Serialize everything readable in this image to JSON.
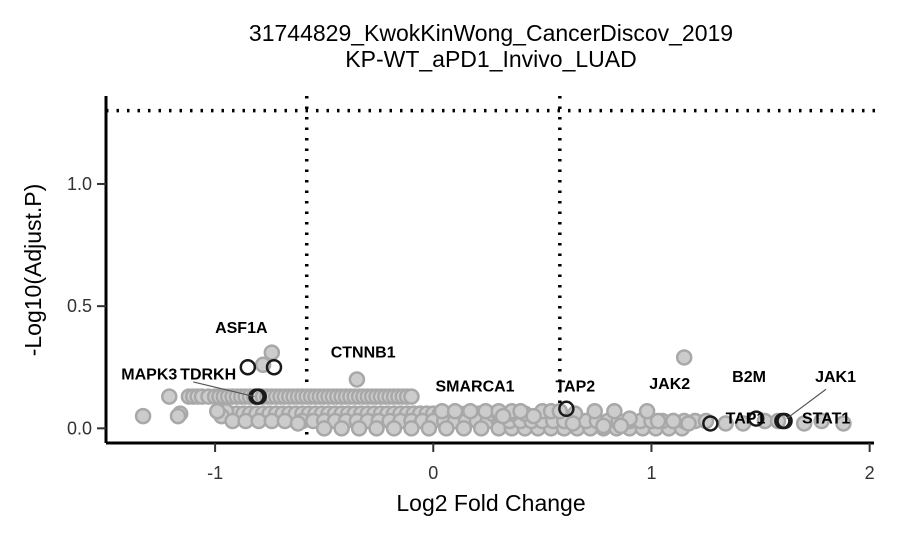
{
  "chart_data": {
    "type": "scatter",
    "title": "31744829_KwokKinWong_CancerDiscov_2019",
    "subtitle": "KP-WT_aPD1_Invivo_LUAD",
    "xlabel": "Log2 Fold Change",
    "ylabel": "-Log10(Adjust.P)",
    "xlim": [
      -1.5,
      2.02
    ],
    "ylim": [
      -0.06,
      1.36
    ],
    "xticks": [
      -1,
      0,
      1,
      2
    ],
    "xtick_labels": [
      "-1",
      "0",
      "1",
      "2"
    ],
    "yticks": [
      0.0,
      0.5,
      1.0
    ],
    "ytick_labels": [
      "0.0",
      "0.5",
      "1.0"
    ],
    "thresholds": {
      "x": [
        -0.58,
        0.58
      ],
      "y": 1.3
    },
    "grid": false,
    "legend": "none",
    "colors": {
      "point_fill": "#cccccc",
      "point_stroke": "#a8a8a8",
      "highlight_stroke": "#1a1a1a",
      "axis": "#000000",
      "label": "#000000"
    },
    "background_points": [
      [
        -1.33,
        0.05
      ],
      [
        -1.21,
        0.13
      ],
      [
        -1.16,
        0.06
      ],
      [
        -1.17,
        0.05
      ],
      [
        -1.12,
        0.13
      ],
      [
        -1.1,
        0.13
      ],
      [
        -1.08,
        0.13
      ],
      [
        -1.06,
        0.13
      ],
      [
        -1.03,
        0.13
      ],
      [
        -1.0,
        0.13
      ],
      [
        -0.98,
        0.13
      ],
      [
        -0.96,
        0.13
      ],
      [
        -0.94,
        0.13
      ],
      [
        -0.92,
        0.13
      ],
      [
        -0.9,
        0.13
      ],
      [
        -0.88,
        0.13
      ],
      [
        -0.86,
        0.13
      ],
      [
        -0.84,
        0.13
      ],
      [
        -0.82,
        0.13
      ],
      [
        -0.8,
        0.13
      ],
      [
        -0.78,
        0.13
      ],
      [
        -0.76,
        0.13
      ],
      [
        -0.74,
        0.13
      ],
      [
        -0.72,
        0.13
      ],
      [
        -0.7,
        0.13
      ],
      [
        -0.68,
        0.13
      ],
      [
        -0.66,
        0.13
      ],
      [
        -0.64,
        0.13
      ],
      [
        -0.62,
        0.13
      ],
      [
        -0.6,
        0.13
      ],
      [
        -0.58,
        0.13
      ],
      [
        -0.56,
        0.13
      ],
      [
        -0.54,
        0.13
      ],
      [
        -0.52,
        0.13
      ],
      [
        -0.5,
        0.13
      ],
      [
        -0.48,
        0.13
      ],
      [
        -0.46,
        0.13
      ],
      [
        -0.44,
        0.13
      ],
      [
        -0.42,
        0.13
      ],
      [
        -0.4,
        0.13
      ],
      [
        -0.38,
        0.13
      ],
      [
        -0.36,
        0.13
      ],
      [
        -0.34,
        0.13
      ],
      [
        -0.32,
        0.13
      ],
      [
        -0.3,
        0.13
      ],
      [
        -0.28,
        0.13
      ],
      [
        -0.26,
        0.13
      ],
      [
        -0.24,
        0.13
      ],
      [
        -0.22,
        0.13
      ],
      [
        -0.2,
        0.13
      ],
      [
        -0.18,
        0.13
      ],
      [
        -0.16,
        0.13
      ],
      [
        -0.14,
        0.13
      ],
      [
        -0.12,
        0.13
      ],
      [
        -0.1,
        0.13
      ],
      [
        -0.93,
        0.06
      ],
      [
        -0.9,
        0.06
      ],
      [
        -0.87,
        0.06
      ],
      [
        -0.84,
        0.06
      ],
      [
        -0.81,
        0.06
      ],
      [
        -0.78,
        0.06
      ],
      [
        -0.75,
        0.06
      ],
      [
        -0.72,
        0.06
      ],
      [
        -0.69,
        0.06
      ],
      [
        -0.66,
        0.06
      ],
      [
        -0.63,
        0.06
      ],
      [
        -0.6,
        0.06
      ],
      [
        -0.57,
        0.06
      ],
      [
        -0.54,
        0.06
      ],
      [
        -0.51,
        0.06
      ],
      [
        -0.48,
        0.06
      ],
      [
        -0.45,
        0.06
      ],
      [
        -0.42,
        0.06
      ],
      [
        -0.39,
        0.06
      ],
      [
        -0.36,
        0.06
      ],
      [
        -0.33,
        0.06
      ],
      [
        -0.3,
        0.06
      ],
      [
        -0.27,
        0.06
      ],
      [
        -0.24,
        0.06
      ],
      [
        -0.21,
        0.06
      ],
      [
        -0.18,
        0.06
      ],
      [
        -0.15,
        0.06
      ],
      [
        -0.12,
        0.06
      ],
      [
        -0.09,
        0.06
      ],
      [
        -0.06,
        0.06
      ],
      [
        -0.03,
        0.06
      ],
      [
        0.0,
        0.06
      ],
      [
        0.03,
        0.06
      ],
      [
        0.06,
        0.06
      ],
      [
        0.09,
        0.06
      ],
      [
        0.12,
        0.06
      ],
      [
        0.15,
        0.06
      ],
      [
        0.18,
        0.06
      ],
      [
        0.21,
        0.06
      ],
      [
        0.24,
        0.06
      ],
      [
        -0.6,
        0.03
      ],
      [
        -0.55,
        0.03
      ],
      [
        -0.5,
        0.03
      ],
      [
        -0.45,
        0.03
      ],
      [
        -0.4,
        0.03
      ],
      [
        -0.35,
        0.03
      ],
      [
        -0.3,
        0.03
      ],
      [
        -0.25,
        0.03
      ],
      [
        -0.2,
        0.03
      ],
      [
        -0.15,
        0.03
      ],
      [
        -0.1,
        0.03
      ],
      [
        -0.05,
        0.03
      ],
      [
        0.0,
        0.03
      ],
      [
        0.05,
        0.03
      ],
      [
        0.1,
        0.03
      ],
      [
        0.15,
        0.03
      ],
      [
        0.2,
        0.03
      ],
      [
        0.25,
        0.03
      ],
      [
        0.3,
        0.03
      ],
      [
        -0.5,
        0.0
      ],
      [
        -0.42,
        0.0
      ],
      [
        -0.34,
        0.0
      ],
      [
        -0.26,
        0.0
      ],
      [
        -0.18,
        0.0
      ],
      [
        -0.1,
        0.0
      ],
      [
        -0.02,
        0.0
      ],
      [
        0.06,
        0.0
      ],
      [
        0.14,
        0.0
      ],
      [
        0.22,
        0.0
      ],
      [
        0.3,
        0.0
      ],
      [
        0.36,
        0.0
      ],
      [
        0.42,
        0.0
      ],
      [
        0.48,
        0.0
      ],
      [
        0.54,
        0.0
      ],
      [
        0.6,
        0.0
      ],
      [
        0.66,
        0.0
      ],
      [
        0.72,
        0.0
      ],
      [
        0.78,
        0.0
      ],
      [
        0.84,
        0.0
      ],
      [
        0.9,
        0.0
      ],
      [
        0.96,
        0.0
      ],
      [
        1.02,
        0.0
      ],
      [
        1.08,
        0.0
      ],
      [
        1.14,
        0.0
      ],
      [
        0.35,
        0.03
      ],
      [
        0.4,
        0.03
      ],
      [
        0.45,
        0.03
      ],
      [
        0.5,
        0.03
      ],
      [
        0.55,
        0.03
      ],
      [
        0.6,
        0.03
      ],
      [
        0.65,
        0.03
      ],
      [
        0.7,
        0.03
      ],
      [
        0.75,
        0.03
      ],
      [
        0.8,
        0.03
      ],
      [
        0.85,
        0.03
      ],
      [
        0.9,
        0.03
      ],
      [
        0.95,
        0.03
      ],
      [
        1.0,
        0.03
      ],
      [
        1.05,
        0.03
      ],
      [
        1.1,
        0.03
      ],
      [
        1.15,
        0.03
      ],
      [
        1.2,
        0.03
      ],
      [
        1.25,
        0.03
      ],
      [
        0.27,
        0.06
      ],
      [
        0.3,
        0.06
      ],
      [
        0.36,
        0.06
      ],
      [
        0.42,
        0.06
      ],
      [
        0.04,
        0.07
      ],
      [
        0.1,
        0.07
      ],
      [
        0.17,
        0.07
      ],
      [
        0.24,
        0.07
      ],
      [
        0.3,
        0.07
      ],
      [
        0.36,
        0.07
      ],
      [
        0.5,
        0.07
      ],
      [
        0.54,
        0.07
      ],
      [
        0.65,
        0.06
      ],
      [
        0.74,
        0.07
      ],
      [
        0.83,
        0.07
      ],
      [
        0.98,
        0.07
      ],
      [
        1.03,
        0.03
      ],
      [
        1.1,
        0.03
      ],
      [
        1.17,
        0.02
      ],
      [
        1.34,
        0.02
      ],
      [
        1.42,
        0.02
      ],
      [
        1.52,
        0.03
      ],
      [
        1.58,
        0.03
      ],
      [
        1.7,
        0.02
      ],
      [
        1.78,
        0.03
      ],
      [
        1.88,
        0.02
      ],
      [
        -0.35,
        0.2
      ],
      [
        -0.74,
        0.31
      ],
      [
        -0.78,
        0.26
      ],
      [
        -0.95,
        0.07
      ],
      [
        -0.97,
        0.05
      ],
      [
        -0.99,
        0.07
      ],
      [
        -0.92,
        0.03
      ],
      [
        -0.86,
        0.03
      ],
      [
        -0.8,
        0.03
      ],
      [
        -0.74,
        0.03
      ],
      [
        -0.68,
        0.03
      ],
      [
        -0.62,
        0.02
      ],
      [
        1.15,
        0.29
      ],
      [
        0.9,
        0.04
      ],
      [
        0.86,
        0.01
      ],
      [
        0.64,
        0.02
      ],
      [
        0.78,
        0.01
      ],
      [
        0.32,
        0.05
      ],
      [
        0.46,
        0.05
      ],
      [
        0.4,
        0.07
      ],
      [
        0.58,
        0.07
      ]
    ],
    "highlighted_points": [
      {
        "gene": "ASF1A",
        "x": -0.85,
        "y": 0.25
      },
      {
        "gene": "ASF1A",
        "x": -0.73,
        "y": 0.25
      },
      {
        "gene": "MAPK3",
        "x": -0.81,
        "y": 0.13
      },
      {
        "gene": "TDRKH",
        "x": -0.8,
        "y": 0.13
      },
      {
        "gene": "TAP2",
        "x": 0.61,
        "y": 0.08
      },
      {
        "gene": "TAP1",
        "x": 1.27,
        "y": 0.02
      },
      {
        "gene": "B2M",
        "x": 1.48,
        "y": 0.04
      },
      {
        "gene": "JAK1",
        "x": 1.6,
        "y": 0.03
      },
      {
        "gene": "STAT1",
        "x": 1.61,
        "y": 0.03
      }
    ],
    "annotations": [
      {
        "text": "ASF1A",
        "x": -1.0,
        "y": 0.39
      },
      {
        "text": "CTNNB1",
        "x": -0.47,
        "y": 0.29
      },
      {
        "text": "MAPK3",
        "x": -1.43,
        "y": 0.2
      },
      {
        "text": "TDRKH",
        "x": -1.16,
        "y": 0.2
      },
      {
        "text": "SMARCA1",
        "x": 0.01,
        "y": 0.15
      },
      {
        "text": "TAP2",
        "x": 0.56,
        "y": 0.15
      },
      {
        "text": "JAK2",
        "x": 0.99,
        "y": 0.16
      },
      {
        "text": "B2M",
        "x": 1.37,
        "y": 0.19
      },
      {
        "text": "JAK1",
        "x": 1.75,
        "y": 0.19
      },
      {
        "text": "TAP1",
        "x": 1.34,
        "y": 0.02
      },
      {
        "text": "STAT1",
        "x": 1.69,
        "y": 0.02
      }
    ],
    "connectors": [
      {
        "x1": -1.1,
        "y1": 0.19,
        "x2": -0.82,
        "y2": 0.13
      },
      {
        "x1": 1.8,
        "y1": 0.16,
        "x2": 1.62,
        "y2": 0.04
      }
    ]
  }
}
